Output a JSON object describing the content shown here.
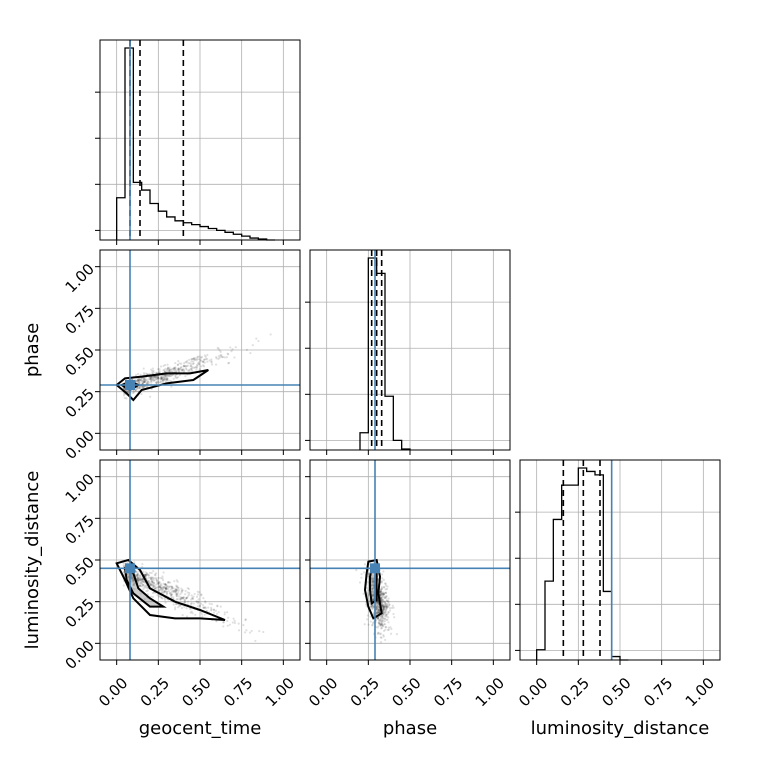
{
  "chart_data": {
    "type": "corner",
    "parameters": [
      "geocent_time",
      "phase",
      "luminosity_distance"
    ],
    "range": [
      -0.1,
      1.1
    ],
    "ticks": [
      0.0,
      0.25,
      0.5,
      0.75,
      1.0
    ],
    "tick_labels": [
      "0.00",
      "0.25",
      "0.50",
      "0.75",
      "1.00"
    ],
    "xlabels": [
      "geocent_time",
      "phase",
      "luminosity_distance"
    ],
    "ylabels": [
      "",
      "phase",
      "luminosity_distance"
    ],
    "grid": true,
    "truths": {
      "geocent_time": 0.08,
      "phase": 0.29,
      "luminosity_distance": 0.45
    },
    "truth_color": "#4682b4",
    "histograms": [
      {
        "parameter": "geocent_time",
        "bin_edges": [
          0.0,
          0.05,
          0.1,
          0.15,
          0.2,
          0.25,
          0.3,
          0.35,
          0.4,
          0.45,
          0.5,
          0.55,
          0.6,
          0.65,
          0.7,
          0.75,
          0.8,
          0.85,
          0.9,
          0.95
        ],
        "counts": [
          0.22,
          1.0,
          0.3,
          0.26,
          0.19,
          0.15,
          0.12,
          0.1,
          0.09,
          0.08,
          0.07,
          0.06,
          0.05,
          0.04,
          0.03,
          0.02,
          0.01,
          0.005,
          0.0
        ],
        "quantiles": [
          0.08,
          0.14,
          0.4
        ]
      },
      {
        "parameter": "phase",
        "bin_edges": [
          0.2,
          0.25,
          0.3,
          0.35,
          0.4,
          0.45,
          0.5
        ],
        "counts": [
          0.09,
          1.0,
          0.92,
          0.28,
          0.05,
          0.005
        ],
        "quantiles": [
          0.27,
          0.3,
          0.33
        ]
      },
      {
        "parameter": "luminosity_distance",
        "bin_edges": [
          0.0,
          0.05,
          0.1,
          0.15,
          0.2,
          0.25,
          0.3,
          0.35,
          0.4,
          0.45,
          0.5,
          0.55
        ],
        "counts": [
          0.03,
          0.23,
          0.41,
          0.51,
          0.51,
          0.56,
          0.55,
          0.54,
          0.2,
          0.01,
          0.0
        ],
        "quantiles": [
          0.16,
          0.28,
          0.38
        ]
      }
    ]
  }
}
